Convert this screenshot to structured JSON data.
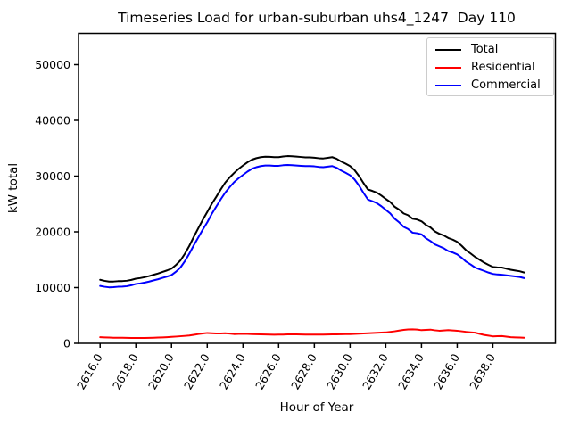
{
  "chart_data": {
    "type": "line",
    "title": "Timeseries Load for urban-suburban uhs4_1247  Day 110",
    "xlabel": "Hour of Year",
    "ylabel": "kW total",
    "xlim": [
      2614.79,
      2641.5
    ],
    "ylim": [
      0,
      55600
    ],
    "grid": false,
    "legend_position": "upper right",
    "legend_border_color": "#cccccc",
    "xticks": {
      "values": [
        2616,
        2618,
        2620,
        2622,
        2624,
        2626,
        2628,
        2630,
        2632,
        2634,
        2636,
        2638
      ],
      "labels": [
        "2616.0",
        "2618.0",
        "2620.0",
        "2622.0",
        "2624.0",
        "2626.0",
        "2628.0",
        "2630.0",
        "2632.0",
        "2634.0",
        "2636.0",
        "2638.0"
      ],
      "rotation_deg": 60
    },
    "yticks": {
      "values": [
        0,
        10000,
        20000,
        30000,
        40000,
        50000
      ],
      "labels": [
        "0",
        "10000",
        "20000",
        "30000",
        "40000",
        "50000"
      ]
    },
    "x": [
      2616.0,
      2616.25,
      2616.5,
      2616.75,
      2617.0,
      2617.25,
      2617.5,
      2617.75,
      2618.0,
      2618.25,
      2618.5,
      2618.75,
      2619.0,
      2619.25,
      2619.5,
      2619.75,
      2620.0,
      2620.25,
      2620.5,
      2620.75,
      2621.0,
      2621.25,
      2621.5,
      2621.75,
      2622.0,
      2622.25,
      2622.5,
      2622.75,
      2623.0,
      2623.25,
      2623.5,
      2623.75,
      2624.0,
      2624.25,
      2624.5,
      2624.75,
      2625.0,
      2625.25,
      2625.5,
      2625.75,
      2626.0,
      2626.25,
      2626.5,
      2626.75,
      2627.0,
      2627.25,
      2627.5,
      2627.75,
      2628.0,
      2628.25,
      2628.5,
      2628.75,
      2629.0,
      2629.25,
      2629.5,
      2629.75,
      2630.0,
      2630.25,
      2630.5,
      2630.75,
      2631.0,
      2631.25,
      2631.5,
      2631.75,
      2632.0,
      2632.25,
      2632.5,
      2632.75,
      2633.0,
      2633.25,
      2633.5,
      2633.75,
      2634.0,
      2634.25,
      2634.5,
      2634.75,
      2635.0,
      2635.25,
      2635.5,
      2635.75,
      2636.0,
      2636.25,
      2636.5,
      2636.75,
      2637.0,
      2637.25,
      2637.5,
      2637.75,
      2638.0,
      2638.25,
      2638.5,
      2638.75,
      2639.0,
      2639.25,
      2639.5,
      2639.75
    ],
    "series": [
      {
        "name": "Total",
        "color": "#000000",
        "values": [
          11400,
          11210,
          11080,
          11090,
          11150,
          11170,
          11230,
          11380,
          11600,
          11710,
          11870,
          12065,
          12300,
          12530,
          12810,
          13080,
          13400,
          14060,
          14870,
          16080,
          17500,
          19120,
          20650,
          22160,
          23550,
          25000,
          26250,
          27570,
          28800,
          29740,
          30550,
          31280,
          31900,
          32470,
          32940,
          33220,
          33400,
          33480,
          33460,
          33395,
          33400,
          33520,
          33590,
          33550,
          33500,
          33430,
          33360,
          33355,
          33300,
          33210,
          33170,
          33285,
          33400,
          33110,
          32620,
          32235,
          31800,
          31080,
          30020,
          28760,
          27600,
          27340,
          27030,
          26515,
          25900,
          25350,
          24500,
          23980,
          23300,
          22980,
          22350,
          22210,
          21900,
          21250,
          20800,
          20080,
          19650,
          19350,
          18900,
          18600,
          18200,
          17500,
          16700,
          16120,
          15500,
          15000,
          14500,
          14080,
          13700,
          13620,
          13600,
          13400,
          13200,
          13060,
          12930,
          12700
        ]
      },
      {
        "name": "Residential",
        "color": "#ff0000",
        "values": [
          1100,
          1060,
          1030,
          1010,
          1000,
          990,
          980,
          960,
          950,
          960,
          970,
          985,
          1000,
          1030,
          1060,
          1100,
          1150,
          1210,
          1270,
          1330,
          1400,
          1520,
          1650,
          1760,
          1850,
          1800,
          1750,
          1770,
          1800,
          1740,
          1650,
          1680,
          1700,
          1670,
          1640,
          1620,
          1600,
          1580,
          1560,
          1545,
          1550,
          1570,
          1590,
          1600,
          1600,
          1580,
          1560,
          1555,
          1550,
          1560,
          1570,
          1585,
          1600,
          1610,
          1620,
          1635,
          1650,
          1680,
          1720,
          1760,
          1800,
          1840,
          1880,
          1915,
          1950,
          2050,
          2150,
          2280,
          2400,
          2480,
          2500,
          2460,
          2350,
          2400,
          2450,
          2330,
          2250,
          2300,
          2350,
          2300,
          2250,
          2150,
          2050,
          1970,
          1900,
          1700,
          1500,
          1380,
          1250,
          1270,
          1300,
          1200,
          1100,
          1060,
          1030,
          1000
        ]
      },
      {
        "name": "Commercial",
        "color": "#0000ff",
        "values": [
          10300,
          10150,
          10050,
          10080,
          10150,
          10180,
          10250,
          10420,
          10650,
          10750,
          10900,
          11080,
          11300,
          11500,
          11750,
          11980,
          12250,
          12850,
          13600,
          14750,
          16100,
          17600,
          19000,
          20400,
          21700,
          23200,
          24500,
          25800,
          27000,
          28000,
          28900,
          29600,
          30200,
          30800,
          31300,
          31600,
          31800,
          31900,
          31900,
          31850,
          31850,
          31950,
          32000,
          31950,
          31900,
          31850,
          31800,
          31800,
          31750,
          31650,
          31600,
          31700,
          31800,
          31500,
          31000,
          30600,
          30150,
          29400,
          28300,
          27000,
          25800,
          25500,
          25150,
          24600,
          23950,
          23300,
          22350,
          21700,
          20900,
          20500,
          19850,
          19750,
          19550,
          18850,
          18350,
          17750,
          17400,
          17050,
          16550,
          16300,
          15950,
          15350,
          14650,
          14150,
          13600,
          13300,
          13000,
          12700,
          12450,
          12350,
          12300,
          12200,
          12100,
          12000,
          11900,
          11700
        ]
      }
    ]
  }
}
